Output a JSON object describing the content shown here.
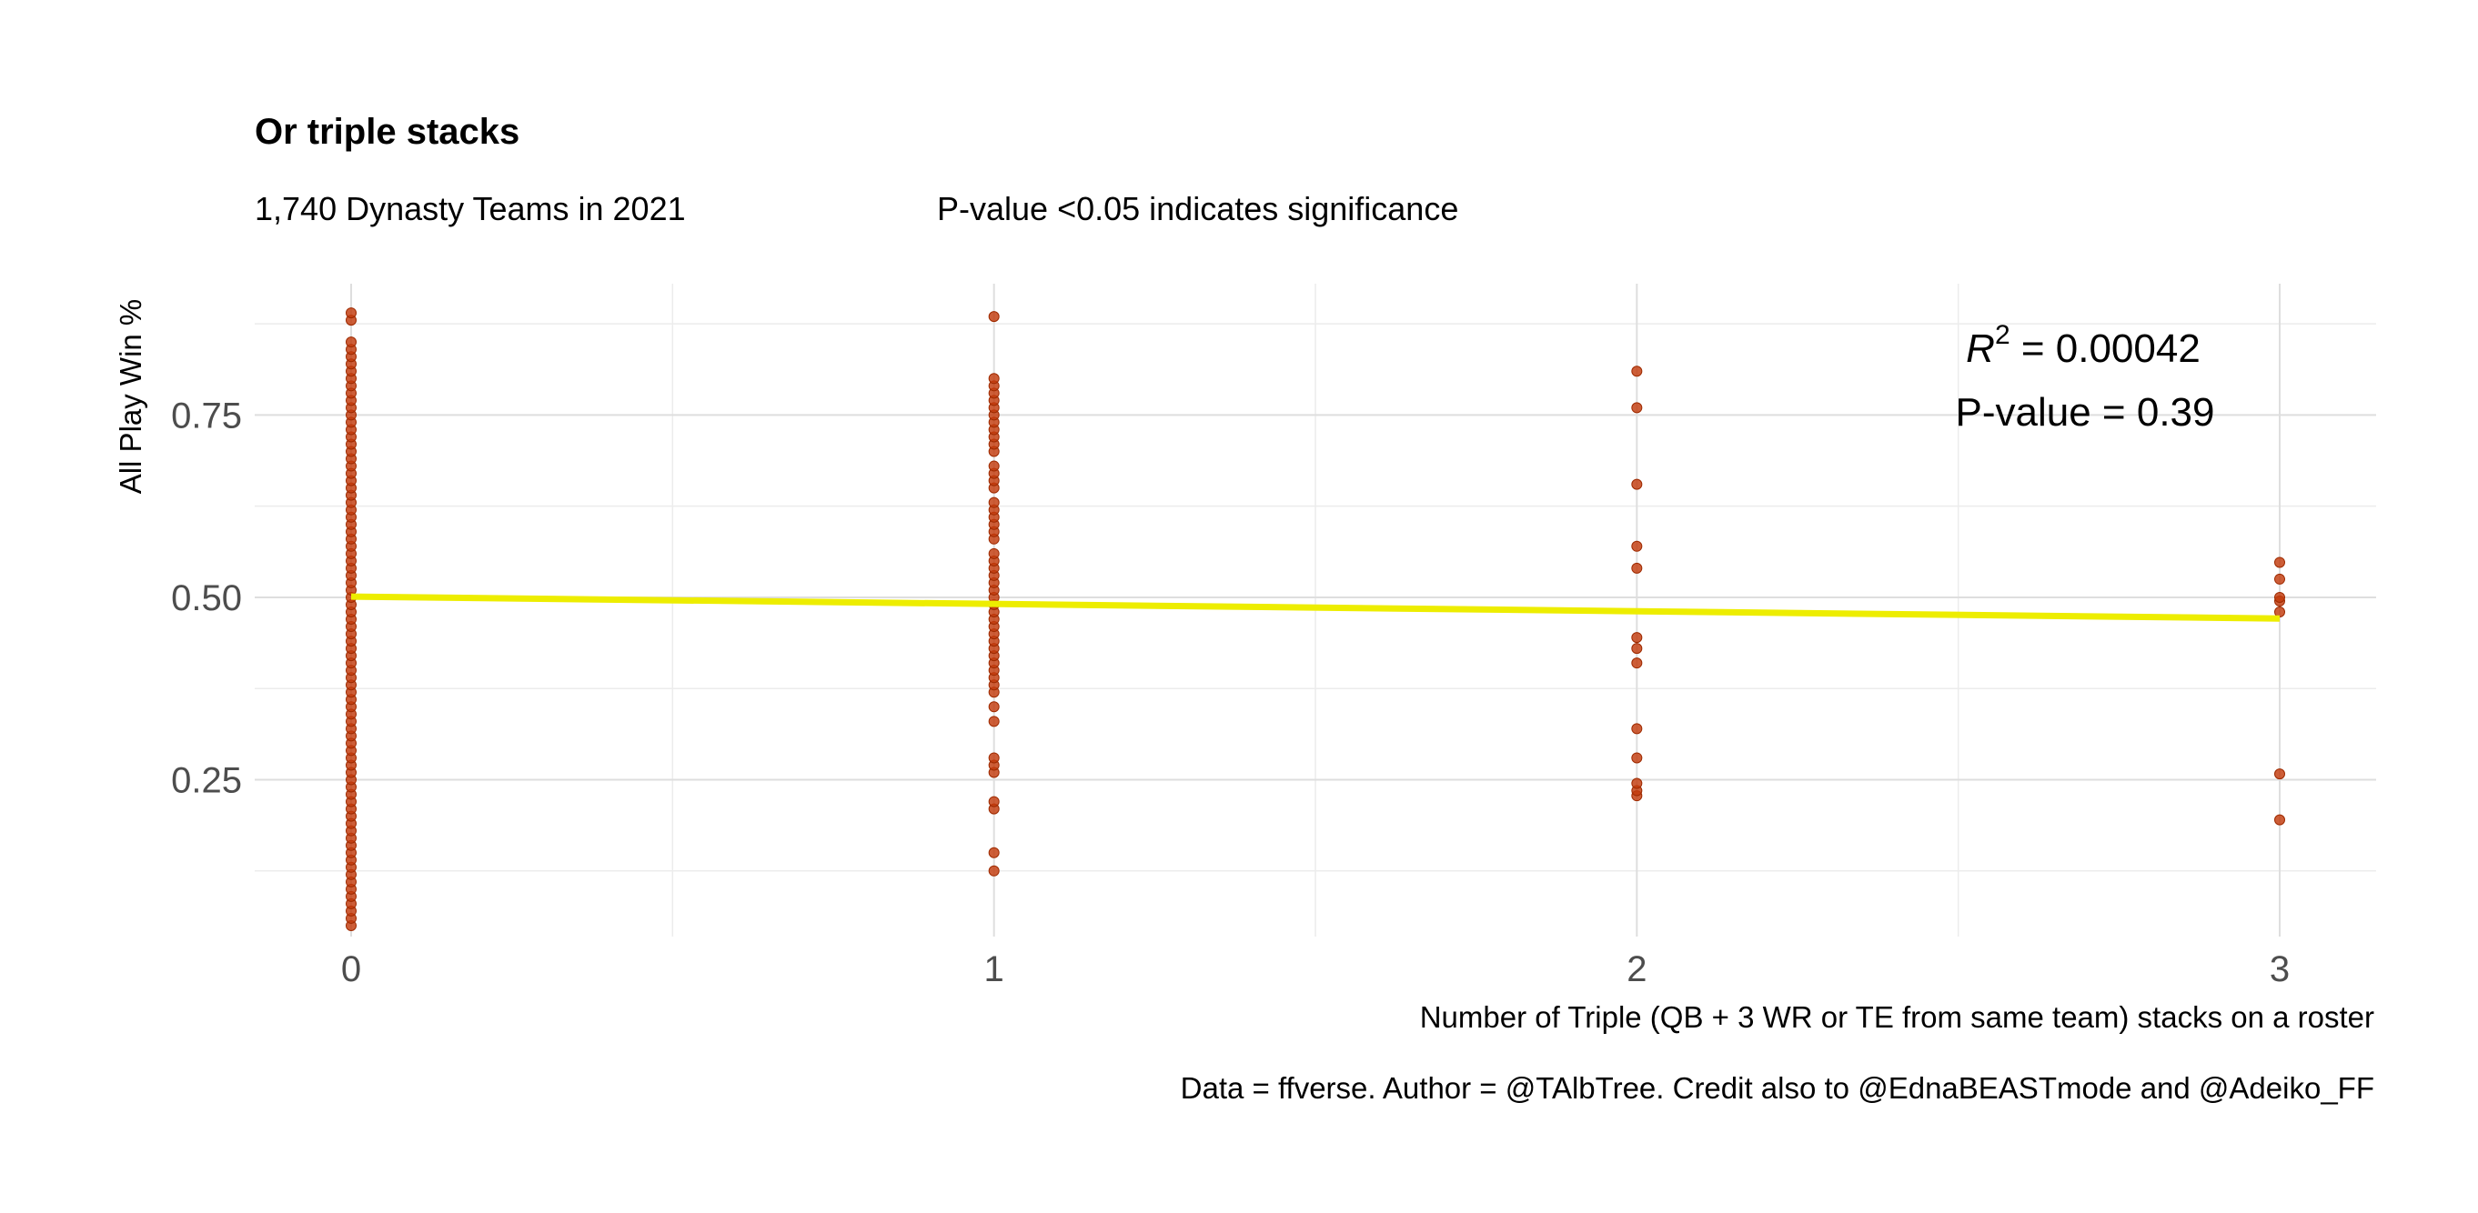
{
  "chart_data": {
    "type": "scatter",
    "title": "Or triple stacks",
    "subtitle_left": "1,740 Dynasty Teams in 2021",
    "subtitle_right": "P-value <0.05 indicates significance",
    "xlabel": "Number of Triple (QB + 3 WR or TE from same team) stacks on a roster",
    "ylabel": "All Play Win %",
    "caption": "Data = ffverse. Author = @TAlbTree. Credit also to @EdnaBEASTmode and @Adeiko_FF",
    "annotation": {
      "r2_label": "R",
      "r2_sup": "2",
      "r2_value": " = 0.00042",
      "pvalue": "P-value = 0.39"
    },
    "xlim": [
      -0.15,
      3.15
    ],
    "ylim": [
      0.035,
      0.93
    ],
    "x_ticks": [
      0,
      1,
      2,
      3
    ],
    "x_tick_labels": [
      "0",
      "1",
      "2",
      "3"
    ],
    "y_ticks": [
      0.25,
      0.5,
      0.75
    ],
    "y_tick_labels": [
      "0.25",
      "0.50",
      "0.75"
    ],
    "grid": true,
    "colors": {
      "points": "#c23b0c",
      "fit_line": "#eded00"
    },
    "fit_line": {
      "x": [
        0,
        3
      ],
      "y": [
        0.501,
        0.471
      ]
    },
    "series": [
      {
        "x": 0,
        "y": [
          0.05,
          0.06,
          0.07,
          0.08,
          0.09,
          0.1,
          0.11,
          0.12,
          0.13,
          0.14,
          0.15,
          0.16,
          0.17,
          0.18,
          0.19,
          0.2,
          0.21,
          0.22,
          0.23,
          0.24,
          0.25,
          0.26,
          0.27,
          0.28,
          0.29,
          0.3,
          0.31,
          0.32,
          0.33,
          0.34,
          0.35,
          0.36,
          0.37,
          0.38,
          0.39,
          0.4,
          0.41,
          0.42,
          0.43,
          0.44,
          0.45,
          0.46,
          0.47,
          0.48,
          0.49,
          0.5,
          0.51,
          0.52,
          0.53,
          0.54,
          0.55,
          0.56,
          0.57,
          0.58,
          0.59,
          0.6,
          0.61,
          0.62,
          0.63,
          0.64,
          0.65,
          0.66,
          0.67,
          0.68,
          0.69,
          0.7,
          0.71,
          0.72,
          0.73,
          0.74,
          0.75,
          0.76,
          0.77,
          0.78,
          0.79,
          0.8,
          0.81,
          0.82,
          0.83,
          0.84,
          0.85,
          0.88,
          0.89
        ]
      },
      {
        "x": 1,
        "y": [
          0.125,
          0.15,
          0.21,
          0.22,
          0.26,
          0.27,
          0.28,
          0.33,
          0.35,
          0.37,
          0.38,
          0.39,
          0.4,
          0.41,
          0.42,
          0.43,
          0.44,
          0.45,
          0.46,
          0.47,
          0.48,
          0.49,
          0.5,
          0.51,
          0.52,
          0.53,
          0.54,
          0.55,
          0.56,
          0.58,
          0.59,
          0.6,
          0.61,
          0.62,
          0.63,
          0.65,
          0.66,
          0.67,
          0.68,
          0.7,
          0.71,
          0.72,
          0.73,
          0.74,
          0.75,
          0.76,
          0.77,
          0.78,
          0.79,
          0.8,
          0.885
        ]
      },
      {
        "x": 2,
        "y": [
          0.228,
          0.235,
          0.245,
          0.28,
          0.32,
          0.41,
          0.43,
          0.445,
          0.54,
          0.57,
          0.655,
          0.76,
          0.81
        ]
      },
      {
        "x": 3,
        "y": [
          0.195,
          0.258,
          0.48,
          0.495,
          0.5,
          0.525,
          0.548
        ]
      }
    ]
  }
}
